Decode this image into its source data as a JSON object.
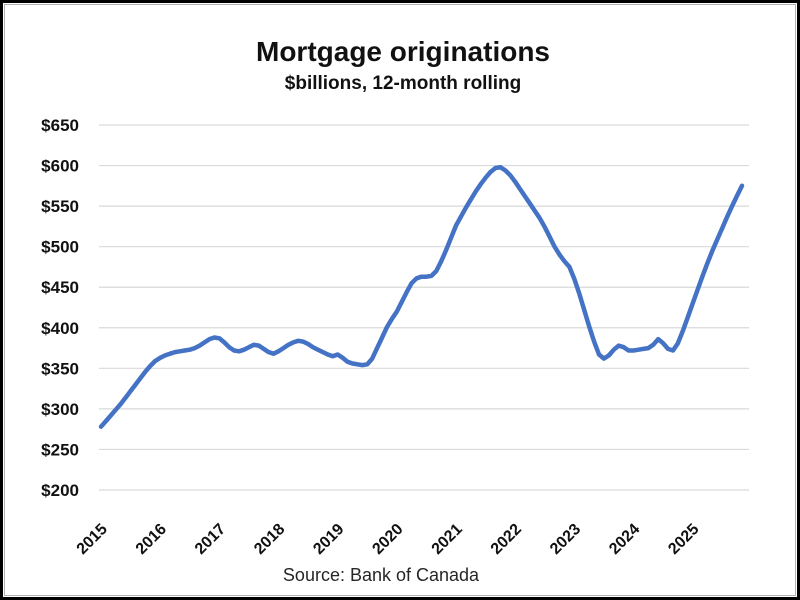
{
  "page": {
    "background": "#ffffff",
    "border_color": "#000000"
  },
  "chart_data": {
    "type": "line",
    "title": "Mortgage originations",
    "subtitle": "$billions, 12-month rolling",
    "source": "Source: Bank of Canada",
    "x_interval": "monthly",
    "x_start": "2015-01",
    "x_end": "2025-11",
    "x_tick_labels": [
      "2015",
      "2016",
      "2017",
      "2018",
      "2019",
      "2020",
      "2021",
      "2022",
      "2023",
      "2024",
      "2025"
    ],
    "y_ticks": [
      200,
      250,
      300,
      350,
      400,
      450,
      500,
      550,
      600,
      650
    ],
    "y_tick_labels": [
      "$200",
      "$250",
      "$300",
      "$350",
      "$400",
      "$450",
      "$500",
      "$550",
      "$600",
      "$650"
    ],
    "ylim": [
      200,
      650
    ],
    "grid": "horizontal",
    "legend": "none",
    "line_color": "#4472C4",
    "line_width": 4.5,
    "series": [
      {
        "name": "Mortgage originations",
        "values": [
          278,
          285,
          292,
          299,
          306,
          314,
          322,
          330,
          338,
          346,
          353,
          359,
          363,
          366,
          368,
          370,
          371,
          372,
          373,
          375,
          378,
          382,
          386,
          388,
          387,
          382,
          376,
          372,
          371,
          373,
          376,
          379,
          378,
          374,
          370,
          368,
          371,
          375,
          379,
          382,
          384,
          383,
          380,
          376,
          373,
          370,
          367,
          365,
          367,
          363,
          358,
          356,
          355,
          354,
          355,
          362,
          375,
          388,
          401,
          411,
          420,
          432,
          444,
          455,
          461,
          463,
          463,
          464,
          470,
          482,
          496,
          511,
          526,
          537,
          548,
          558,
          568,
          577,
          585,
          592,
          597,
          598,
          594,
          588,
          580,
          571,
          562,
          553,
          544,
          535,
          524,
          512,
          500,
          490,
          482,
          475,
          460,
          442,
          422,
          402,
          383,
          367,
          362,
          366,
          373,
          378,
          376,
          372,
          372,
          373,
          374,
          375,
          379,
          386,
          381,
          374,
          372,
          381,
          396,
          413,
          430,
          447,
          464,
          480,
          495,
          509,
          523,
          537,
          550,
          563,
          575
        ]
      }
    ]
  }
}
